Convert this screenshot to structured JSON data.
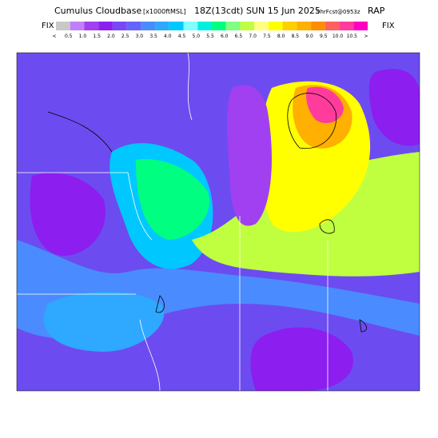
{
  "header": {
    "title": "Cumulus Cloudbase",
    "units": "[x1000ftMSL]",
    "valid": "18Z(13cdt) SUN 15 Jun 2025",
    "forecast": "9hrFcst@0953z",
    "model": "RAP"
  },
  "legend": {
    "left_label": "FIX",
    "right_label": "FIX",
    "labels": [
      "<",
      "0.5",
      "1.0",
      "1.5",
      "2.0",
      "2.5",
      "3.0",
      "3.5",
      "4.0",
      "4.5",
      "5.0",
      "5.5",
      "6.0",
      "6.5",
      "7.0",
      "7.5",
      "8.0",
      "8.5",
      "9.0",
      "9.5",
      "10.0",
      "10.5",
      ">"
    ],
    "colors": [
      "#c8c8c8",
      "#c080f8",
      "#a040f0",
      "#8c1ef0",
      "#7848f8",
      "#6464ff",
      "#4a8cff",
      "#2fa8ff",
      "#00c8ff",
      "#80ffff",
      "#00f0e0",
      "#00ff80",
      "#80ff80",
      "#c0ff40",
      "#ffff80",
      "#ffff00",
      "#ffd000",
      "#ffb000",
      "#ff8c00",
      "#ff6060",
      "#ff3c9c",
      "#ff00c0"
    ]
  }
}
